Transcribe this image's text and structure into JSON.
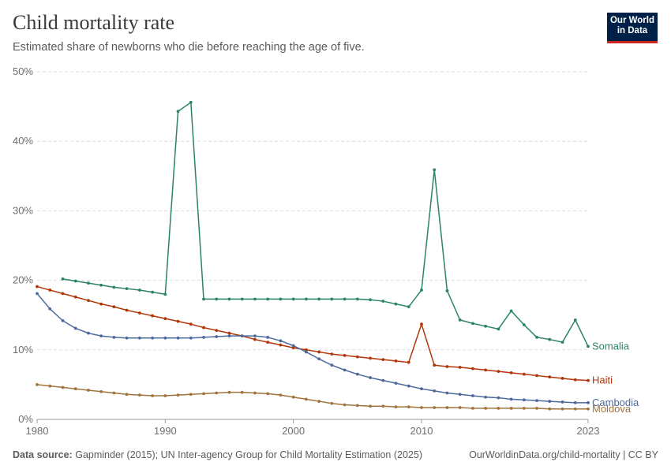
{
  "header": {
    "title": "Child mortality rate",
    "subtitle": "Estimated share of newborns who die before reaching the age of five."
  },
  "logo": {
    "line1": "Our World",
    "line2": "in Data"
  },
  "footer": {
    "source_label": "Data source:",
    "source_text": "Gapminder (2015); UN Inter-agency Group for Child Mortality Estimation (2025)",
    "url_license": "OurWorldinData.org/child-mortality | CC BY"
  },
  "chart_data": {
    "type": "line",
    "title": "Child mortality rate",
    "subtitle": "Estimated share of newborns who die before reaching the age of five.",
    "x_ticks": [
      "1980",
      "1990",
      "2000",
      "2010",
      "2023"
    ],
    "y_ticks": [
      "0%",
      "10%",
      "20%",
      "30%",
      "40%",
      "50%"
    ],
    "xlim": [
      1980,
      2023
    ],
    "ylim": [
      0,
      50
    ],
    "grid": "horizontal",
    "legend": "inline labels at line ends",
    "series": [
      {
        "name": "Somalia",
        "color": "#2c8465",
        "x": [
          1982,
          1983,
          1984,
          1985,
          1986,
          1987,
          1988,
          1989,
          1990,
          1991,
          1992,
          1993,
          1994,
          1995,
          1996,
          1997,
          1998,
          1999,
          2000,
          2001,
          2002,
          2003,
          2004,
          2005,
          2006,
          2007,
          2008,
          2009,
          2010,
          2011,
          2012,
          2013,
          2014,
          2015,
          2016,
          2017,
          2018,
          2019,
          2020,
          2021,
          2022,
          2023
        ],
        "values": [
          20.2,
          19.9,
          19.6,
          19.3,
          19.0,
          18.8,
          18.6,
          18.3,
          18.0,
          44.3,
          45.6,
          17.3,
          17.3,
          17.3,
          17.3,
          17.3,
          17.3,
          17.3,
          17.3,
          17.3,
          17.3,
          17.3,
          17.3,
          17.3,
          17.2,
          17.0,
          16.6,
          16.2,
          18.6,
          35.9,
          18.5,
          14.3,
          13.8,
          13.4,
          13.0,
          15.6,
          13.6,
          11.8,
          11.5,
          11.1,
          14.3,
          10.5
        ]
      },
      {
        "name": "Haiti",
        "color": "#b13507",
        "x": [
          1980,
          1981,
          1982,
          1983,
          1984,
          1985,
          1986,
          1987,
          1988,
          1989,
          1990,
          1991,
          1992,
          1993,
          1994,
          1995,
          1996,
          1997,
          1998,
          1999,
          2000,
          2001,
          2002,
          2003,
          2004,
          2005,
          2006,
          2007,
          2008,
          2009,
          2010,
          2011,
          2012,
          2013,
          2014,
          2015,
          2016,
          2017,
          2018,
          2019,
          2020,
          2021,
          2022,
          2023
        ],
        "values": [
          19.1,
          18.6,
          18.1,
          17.6,
          17.1,
          16.6,
          16.2,
          15.7,
          15.3,
          14.9,
          14.5,
          14.1,
          13.7,
          13.2,
          12.8,
          12.4,
          12.0,
          11.5,
          11.1,
          10.7,
          10.3,
          10.0,
          9.7,
          9.4,
          9.2,
          9.0,
          8.8,
          8.6,
          8.4,
          8.2,
          13.7,
          7.8,
          7.6,
          7.5,
          7.3,
          7.1,
          6.9,
          6.7,
          6.5,
          6.3,
          6.1,
          5.9,
          5.7,
          5.6
        ]
      },
      {
        "name": "Cambodia",
        "color": "#4c6a9c",
        "x": [
          1980,
          1981,
          1982,
          1983,
          1984,
          1985,
          1986,
          1987,
          1988,
          1989,
          1990,
          1991,
          1992,
          1993,
          1994,
          1995,
          1996,
          1997,
          1998,
          1999,
          2000,
          2001,
          2002,
          2003,
          2004,
          2005,
          2006,
          2007,
          2008,
          2009,
          2010,
          2011,
          2012,
          2013,
          2014,
          2015,
          2016,
          2017,
          2018,
          2019,
          2020,
          2021,
          2022,
          2023
        ],
        "values": [
          18.1,
          15.9,
          14.2,
          13.1,
          12.4,
          12.0,
          11.8,
          11.7,
          11.7,
          11.7,
          11.7,
          11.7,
          11.7,
          11.8,
          11.9,
          12.0,
          12.0,
          12.0,
          11.8,
          11.3,
          10.6,
          9.7,
          8.7,
          7.8,
          7.1,
          6.5,
          6.0,
          5.6,
          5.2,
          4.8,
          4.4,
          4.1,
          3.8,
          3.6,
          3.4,
          3.2,
          3.1,
          2.9,
          2.8,
          2.7,
          2.6,
          2.5,
          2.4,
          2.4
        ]
      },
      {
        "name": "Moldova",
        "color": "#a2733c",
        "x": [
          1980,
          1981,
          1982,
          1983,
          1984,
          1985,
          1986,
          1987,
          1988,
          1989,
          1990,
          1991,
          1992,
          1993,
          1994,
          1995,
          1996,
          1997,
          1998,
          1999,
          2000,
          2001,
          2002,
          2003,
          2004,
          2005,
          2006,
          2007,
          2008,
          2009,
          2010,
          2011,
          2012,
          2013,
          2014,
          2015,
          2016,
          2017,
          2018,
          2019,
          2020,
          2021,
          2022,
          2023
        ],
        "values": [
          5.0,
          4.8,
          4.6,
          4.4,
          4.2,
          4.0,
          3.8,
          3.6,
          3.5,
          3.4,
          3.4,
          3.5,
          3.6,
          3.7,
          3.8,
          3.9,
          3.9,
          3.8,
          3.7,
          3.5,
          3.2,
          2.9,
          2.6,
          2.3,
          2.1,
          2.0,
          1.9,
          1.9,
          1.8,
          1.8,
          1.7,
          1.7,
          1.7,
          1.7,
          1.6,
          1.6,
          1.6,
          1.6,
          1.6,
          1.6,
          1.5,
          1.5,
          1.5,
          1.5
        ]
      }
    ]
  }
}
